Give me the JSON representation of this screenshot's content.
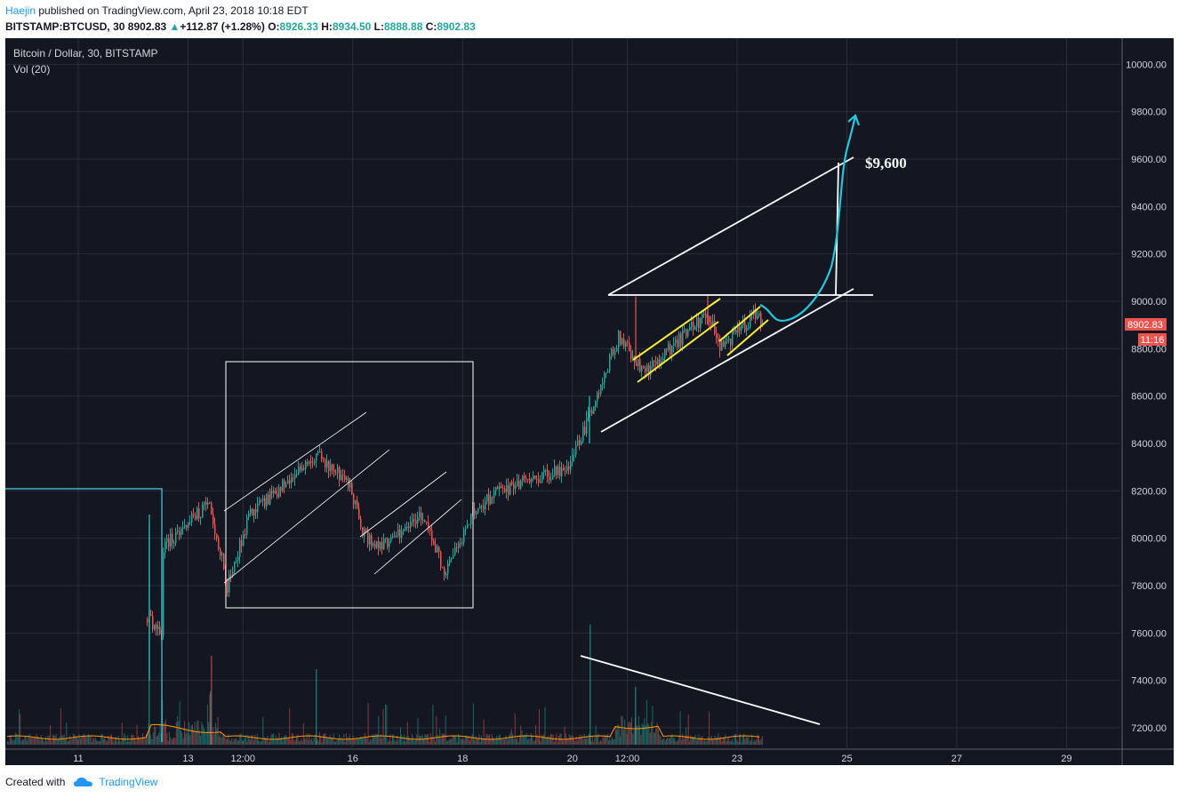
{
  "header": {
    "author": "Haejin",
    "published": "published on TradingView.com, April 23, 2018 10:18 EDT",
    "symbol": "BITSTAMP:BTCUSD, 30",
    "last": "8902.83",
    "change": "+112.87 (+1.28%)",
    "open_label": "O:",
    "open": "8926.33",
    "high_label": "H:",
    "high": "8934.50",
    "low_label": "L:",
    "low": "8888.88",
    "close_label": "C:",
    "close": "8902.83"
  },
  "chart": {
    "legend_title": "Bitcoin / Dollar, 30, BITSTAMP",
    "legend_vol": "Vol (20)",
    "price_badge": "8902.83",
    "time_badge": "11:16",
    "annotation": "$9,600"
  },
  "chart_data": {
    "type": "candlestick",
    "title": "Bitcoin / Dollar, 30, BITSTAMP",
    "y_ticks": [
      "10000.00",
      "9800.00",
      "9600.00",
      "9400.00",
      "9200.00",
      "9000.00",
      "8800.00",
      "8600.00",
      "8400.00",
      "8200.00",
      "8000.00",
      "7800.00",
      "7600.00",
      "7400.00",
      "7200.00"
    ],
    "x_ticks": [
      "11",
      "13",
      "12:00",
      "16",
      "18",
      "20",
      "12:00",
      "23",
      "25",
      "27",
      "29"
    ],
    "ylim": [
      7150,
      10100
    ],
    "price_anchors": [
      {
        "t": "Apr 10",
        "p": 8200
      },
      {
        "t": "Apr 12",
        "p": 7600
      },
      {
        "t": "Apr 12",
        "p": 7900
      },
      {
        "t": "Apr 13",
        "p": 8150
      },
      {
        "t": "Apr 13",
        "p": 7800
      },
      {
        "t": "Apr 14",
        "p": 8100
      },
      {
        "t": "Apr 15",
        "p": 8350
      },
      {
        "t": "Apr 15",
        "p": 8250
      },
      {
        "t": "Apr 16",
        "p": 8050
      },
      {
        "t": "Apr 16",
        "p": 7950
      },
      {
        "t": "Apr 17",
        "p": 8100
      },
      {
        "t": "Apr 17",
        "p": 7850
      },
      {
        "t": "Apr 18",
        "p": 8100
      },
      {
        "t": "Apr 19",
        "p": 8200
      },
      {
        "t": "Apr 20",
        "p": 8300
      },
      {
        "t": "Apr 20",
        "p": 8550
      },
      {
        "t": "Apr 21",
        "p": 8850
      },
      {
        "t": "Apr 21",
        "p": 8700
      },
      {
        "t": "Apr 22",
        "p": 8950
      },
      {
        "t": "Apr 22",
        "p": 8800
      },
      {
        "t": "Apr 23",
        "p": 8950
      },
      {
        "t": "Apr 23",
        "p": 8903
      }
    ],
    "last_price": 8902.83,
    "target": 9600,
    "grid": true
  }
}
